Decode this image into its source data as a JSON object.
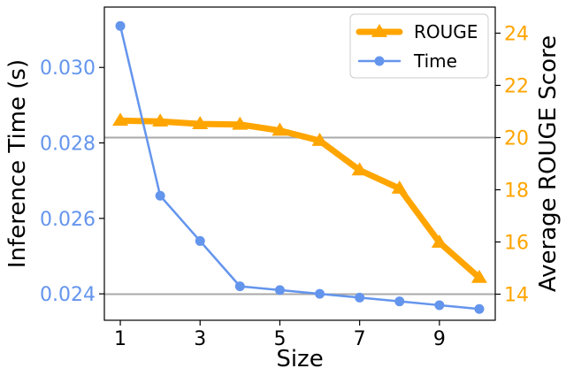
{
  "chart_data": {
    "type": "line",
    "x": [
      1,
      2,
      3,
      4,
      5,
      6,
      7,
      8,
      9,
      10
    ],
    "xlabel": "Size",
    "xticks": [
      1,
      3,
      5,
      7,
      9
    ],
    "xlim": [
      0.6,
      10.4
    ],
    "left_axis": {
      "label": "Inference Time (s)",
      "ticks": [
        0.024,
        0.026,
        0.028,
        0.03
      ],
      "tick_labels": [
        "0.024",
        "0.026",
        "0.028",
        "0.030"
      ],
      "ylim": [
        0.0233,
        0.0316
      ],
      "color": "#6495ED"
    },
    "right_axis": {
      "label": "Average ROUGE Score",
      "ticks": [
        14,
        16,
        18,
        20,
        22,
        24
      ],
      "tick_labels": [
        "14",
        "16",
        "18",
        "20",
        "22",
        "24"
      ],
      "ylim": [
        13.0,
        25.0
      ],
      "color": "#FFA500"
    },
    "series": [
      {
        "name": "ROUGE",
        "axis": "right",
        "color": "#FFA500",
        "marker": "triangle",
        "values": [
          20.65,
          20.62,
          20.52,
          20.5,
          20.27,
          19.88,
          18.75,
          18.05,
          15.98,
          14.63
        ]
      },
      {
        "name": "Time",
        "axis": "left",
        "color": "#6495ED",
        "marker": "circle",
        "values": [
          0.0311,
          0.0266,
          0.0254,
          0.0242,
          0.0241,
          0.024,
          0.0239,
          0.0238,
          0.0237,
          0.0236
        ]
      }
    ],
    "hlines_right": [
      20,
      14
    ],
    "hline_color": "#a9a9a9",
    "grid": false,
    "legend_position": "top-right"
  }
}
